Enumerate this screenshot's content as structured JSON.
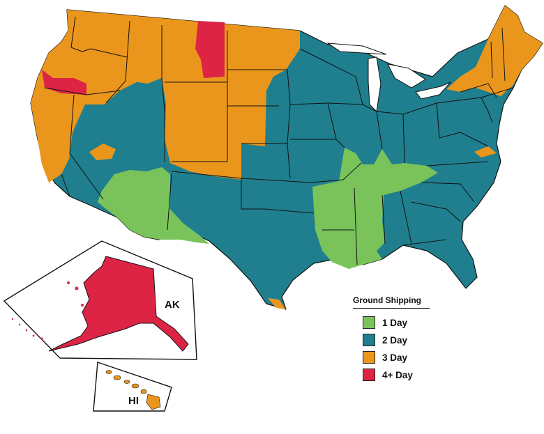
{
  "legend": {
    "title": "Ground Shipping",
    "items": [
      {
        "label": "1 Day",
        "color": "#7ac35a"
      },
      {
        "label": "2 Day",
        "color": "#1f7f8e"
      },
      {
        "label": "3 Day",
        "color": "#ea961c"
      },
      {
        "label": "4+ Day",
        "color": "#dd2445"
      }
    ]
  },
  "insets": {
    "alaska": {
      "label": "AK",
      "zone": "4+ Day"
    },
    "hawaii": {
      "label": "HI",
      "zone": "3 Day"
    }
  },
  "colors": {
    "green": "#7ac35a",
    "teal": "#1f7f8e",
    "orange": "#ea961c",
    "red": "#dd2445"
  }
}
